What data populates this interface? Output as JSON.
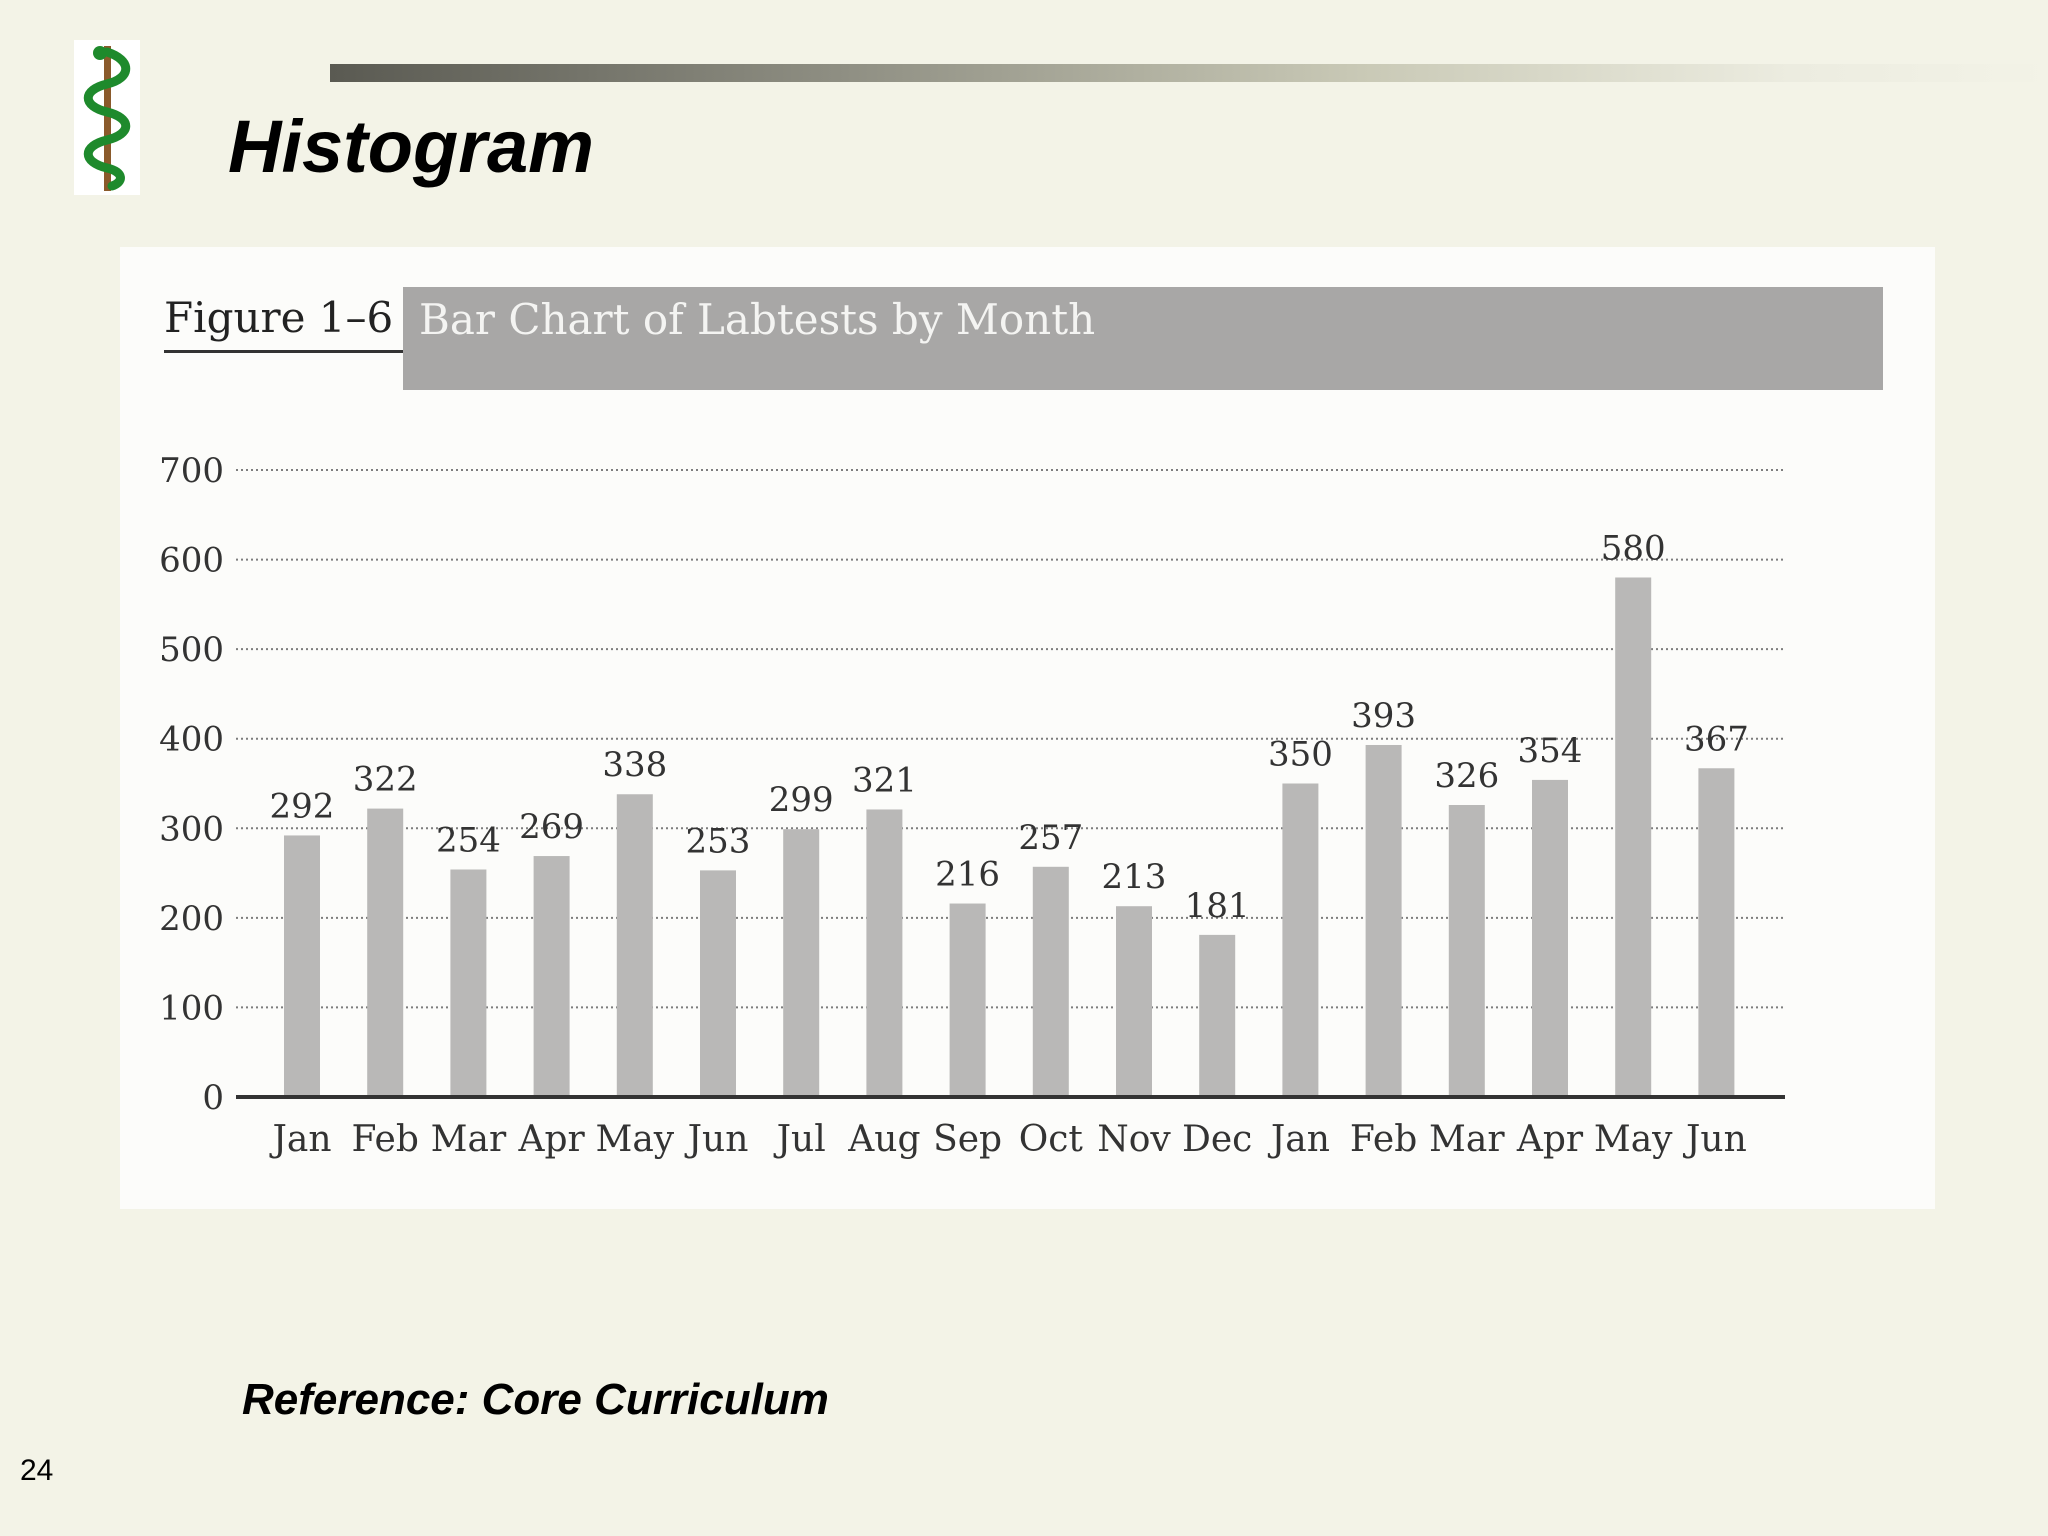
{
  "slide": {
    "title": "Histogram",
    "reference": "Reference:  Core Curriculum",
    "page_number": "24"
  },
  "figure": {
    "label": "Figure 1–6",
    "banner_title": "Bar Chart of Labtests by Month"
  },
  "colors": {
    "background": "#f3f3e7",
    "panel": "#fcfcfa",
    "banner": "#a8a7a6",
    "bar": "#b9b8b7",
    "axis": "#333333",
    "logo_snake": "#1e8a2c",
    "logo_staff": "#8a5a2b"
  },
  "chart_data": {
    "type": "bar",
    "title": "Bar Chart of Labtests by Month",
    "xlabel": "",
    "ylabel": "",
    "ylim": [
      0,
      700
    ],
    "yticks": [
      0,
      100,
      200,
      300,
      400,
      500,
      600,
      700
    ],
    "grid": true,
    "categories": [
      "Jan",
      "Feb",
      "Mar",
      "Apr",
      "May",
      "Jun",
      "Jul",
      "Aug",
      "Sep",
      "Oct",
      "Nov",
      "Dec",
      "Jan",
      "Feb",
      "Mar",
      "Apr",
      "May",
      "Jun"
    ],
    "values": [
      292,
      322,
      254,
      269,
      338,
      253,
      299,
      321,
      216,
      257,
      213,
      181,
      350,
      393,
      326,
      354,
      580,
      367
    ],
    "data_labels": true
  }
}
